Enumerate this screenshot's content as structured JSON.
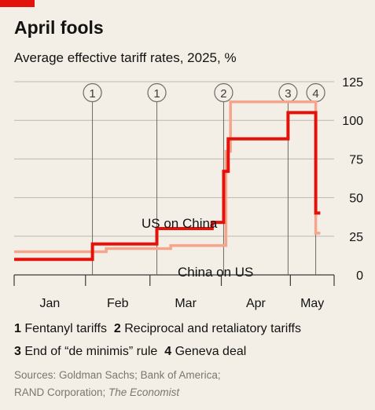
{
  "title": "April fools",
  "subtitle": "Average effective tariff rates, 2025, %",
  "legend": [
    {
      "num": "1",
      "text": "Fentanyl tariffs"
    },
    {
      "num": "2",
      "text": "Reciprocal and retaliatory tariffs"
    },
    {
      "num": "3",
      "text": "End of “de minimis” rule"
    },
    {
      "num": "4",
      "text": "Geneva deal"
    }
  ],
  "sources": {
    "line1": "Sources: Goldman Sachs; Bank of America;",
    "line2a": "RAND Corporation; ",
    "line2b": "The Economist"
  },
  "colors": {
    "us_on_china": "#e3120b",
    "china_on_us": "#f5a58c",
    "background": "#f3efe6"
  },
  "chart_data": {
    "type": "line",
    "title": "April fools",
    "subtitle": "Average effective tariff rates, 2025, %",
    "x_ticks": [
      "Jan",
      "Feb",
      "Mar",
      "Apr",
      "May"
    ],
    "y_ticks": [
      0,
      25,
      50,
      75,
      100,
      125
    ],
    "ylim": [
      0,
      125
    ],
    "xlim": [
      "2025-01-01",
      "2025-05-20"
    ],
    "grid": true,
    "series": [
      {
        "name": "US on China",
        "color": "#e3120b",
        "points": [
          [
            "2025-01-01",
            10
          ],
          [
            "2025-02-04",
            10
          ],
          [
            "2025-02-04",
            20
          ],
          [
            "2025-03-04",
            20
          ],
          [
            "2025-03-04",
            30
          ],
          [
            "2025-03-28",
            30
          ],
          [
            "2025-03-28",
            34
          ],
          [
            "2025-04-02",
            34
          ],
          [
            "2025-04-02",
            67
          ],
          [
            "2025-04-04",
            67
          ],
          [
            "2025-04-04",
            88
          ],
          [
            "2025-04-30",
            88
          ],
          [
            "2025-04-30",
            105
          ],
          [
            "2025-05-12",
            105
          ],
          [
            "2025-05-12",
            40
          ],
          [
            "2025-05-14",
            40
          ]
        ]
      },
      {
        "name": "China on US",
        "color": "#f5a58c",
        "points": [
          [
            "2025-01-01",
            15
          ],
          [
            "2025-02-10",
            15
          ],
          [
            "2025-02-10",
            17
          ],
          [
            "2025-03-10",
            17
          ],
          [
            "2025-03-10",
            19
          ],
          [
            "2025-04-03",
            19
          ],
          [
            "2025-04-03",
            80
          ],
          [
            "2025-04-05",
            80
          ],
          [
            "2025-04-05",
            112
          ],
          [
            "2025-05-12",
            112
          ],
          [
            "2025-05-12",
            27
          ],
          [
            "2025-05-14",
            27
          ]
        ]
      }
    ],
    "annotations": [
      {
        "num": "1",
        "date": "2025-02-04"
      },
      {
        "num": "1",
        "date": "2025-03-04"
      },
      {
        "num": "2",
        "date": "2025-04-02"
      },
      {
        "num": "3",
        "date": "2025-04-30"
      },
      {
        "num": "4",
        "date": "2025-05-12"
      }
    ]
  }
}
